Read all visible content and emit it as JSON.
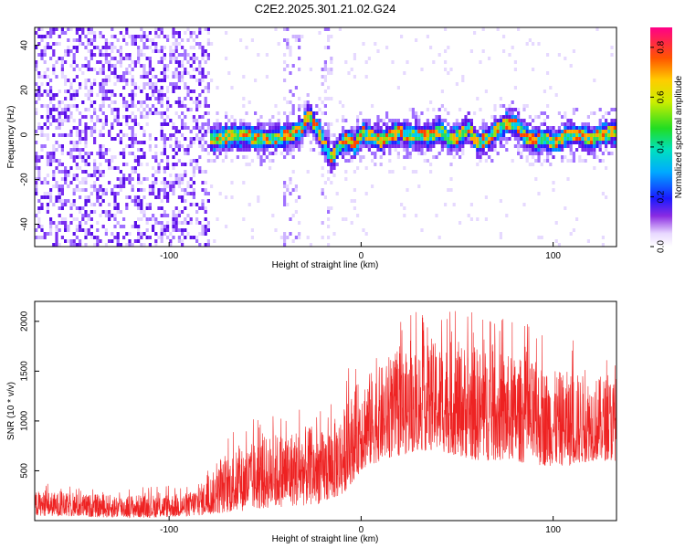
{
  "title": "C2E2.2025.301.21.02.G24",
  "colors": {
    "snr_line": "#ee2222",
    "frame": "#000000",
    "background": "#ffffff"
  },
  "chart_data": [
    {
      "type": "heatmap",
      "name": "spectrogram",
      "xlabel": "Height of straight line (km)",
      "ylabel": "Frequency (Hz)",
      "xlim": [
        -170,
        133
      ],
      "ylim": [
        -50,
        48
      ],
      "x_ticks": [
        -100,
        0,
        100
      ],
      "y_ticks": [
        -40,
        -20,
        0,
        20,
        40
      ],
      "colorbar": {
        "label": "Normalized spectral amplitude",
        "range": [
          0,
          0.88
        ],
        "ticks": [
          0.0,
          0.2,
          0.4,
          0.6,
          0.8
        ],
        "colormap": "rainbow"
      },
      "noise_until_km": -80,
      "signal_center": [
        [
          -80,
          -2
        ],
        [
          -70,
          0
        ],
        [
          -60,
          0
        ],
        [
          -50,
          -1
        ],
        [
          -40,
          0
        ],
        [
          -32,
          3
        ],
        [
          -28,
          10
        ],
        [
          -24,
          4
        ],
        [
          -20,
          -3
        ],
        [
          -16,
          -10
        ],
        [
          -12,
          -4
        ],
        [
          -8,
          -1
        ],
        [
          -4,
          -4
        ],
        [
          0,
          2
        ],
        [
          5,
          0
        ],
        [
          10,
          -2
        ],
        [
          15,
          1
        ],
        [
          20,
          2
        ],
        [
          25,
          0
        ],
        [
          30,
          1
        ],
        [
          35,
          0
        ],
        [
          40,
          3
        ],
        [
          45,
          -1
        ],
        [
          50,
          0
        ],
        [
          55,
          4
        ],
        [
          60,
          -3
        ],
        [
          65,
          -1
        ],
        [
          70,
          3
        ],
        [
          75,
          6
        ],
        [
          80,
          5
        ],
        [
          85,
          0
        ],
        [
          90,
          -2
        ],
        [
          95,
          -1
        ],
        [
          100,
          -3
        ],
        [
          105,
          0
        ],
        [
          110,
          1
        ],
        [
          115,
          0
        ],
        [
          120,
          -1
        ],
        [
          125,
          1
        ],
        [
          133,
          2
        ]
      ]
    },
    {
      "type": "line",
      "name": "snr",
      "xlabel": "Height of straight line (km)",
      "ylabel": "SNR (10 * v/v)",
      "xlim": [
        -170,
        133
      ],
      "ylim": [
        0,
        2200
      ],
      "x_ticks": [
        -100,
        0,
        100
      ],
      "y_ticks": [
        500,
        1000,
        1500,
        2000
      ],
      "series": [
        {
          "name": "SNR",
          "envelope": [
            [
              -170,
              50,
              300
            ],
            [
              -150,
              40,
              270
            ],
            [
              -130,
              30,
              260
            ],
            [
              -110,
              30,
              260
            ],
            [
              -90,
              40,
              280
            ],
            [
              -80,
              60,
              420
            ],
            [
              -70,
              80,
              650
            ],
            [
              -60,
              100,
              750
            ],
            [
              -50,
              120,
              850
            ],
            [
              -40,
              140,
              900
            ],
            [
              -30,
              150,
              950
            ],
            [
              -20,
              170,
              900
            ],
            [
              -10,
              250,
              1100
            ],
            [
              0,
              500,
              1450
            ],
            [
              10,
              600,
              1550
            ],
            [
              20,
              650,
              1650
            ],
            [
              30,
              700,
              1750
            ],
            [
              40,
              700,
              1800
            ],
            [
              50,
              650,
              1800
            ],
            [
              60,
              600,
              1750
            ],
            [
              70,
              600,
              1700
            ],
            [
              80,
              600,
              1650
            ],
            [
              90,
              550,
              1600
            ],
            [
              100,
              550,
              1500
            ],
            [
              110,
              550,
              1500
            ],
            [
              120,
              600,
              1450
            ],
            [
              133,
              600,
              1450
            ]
          ]
        }
      ]
    }
  ]
}
